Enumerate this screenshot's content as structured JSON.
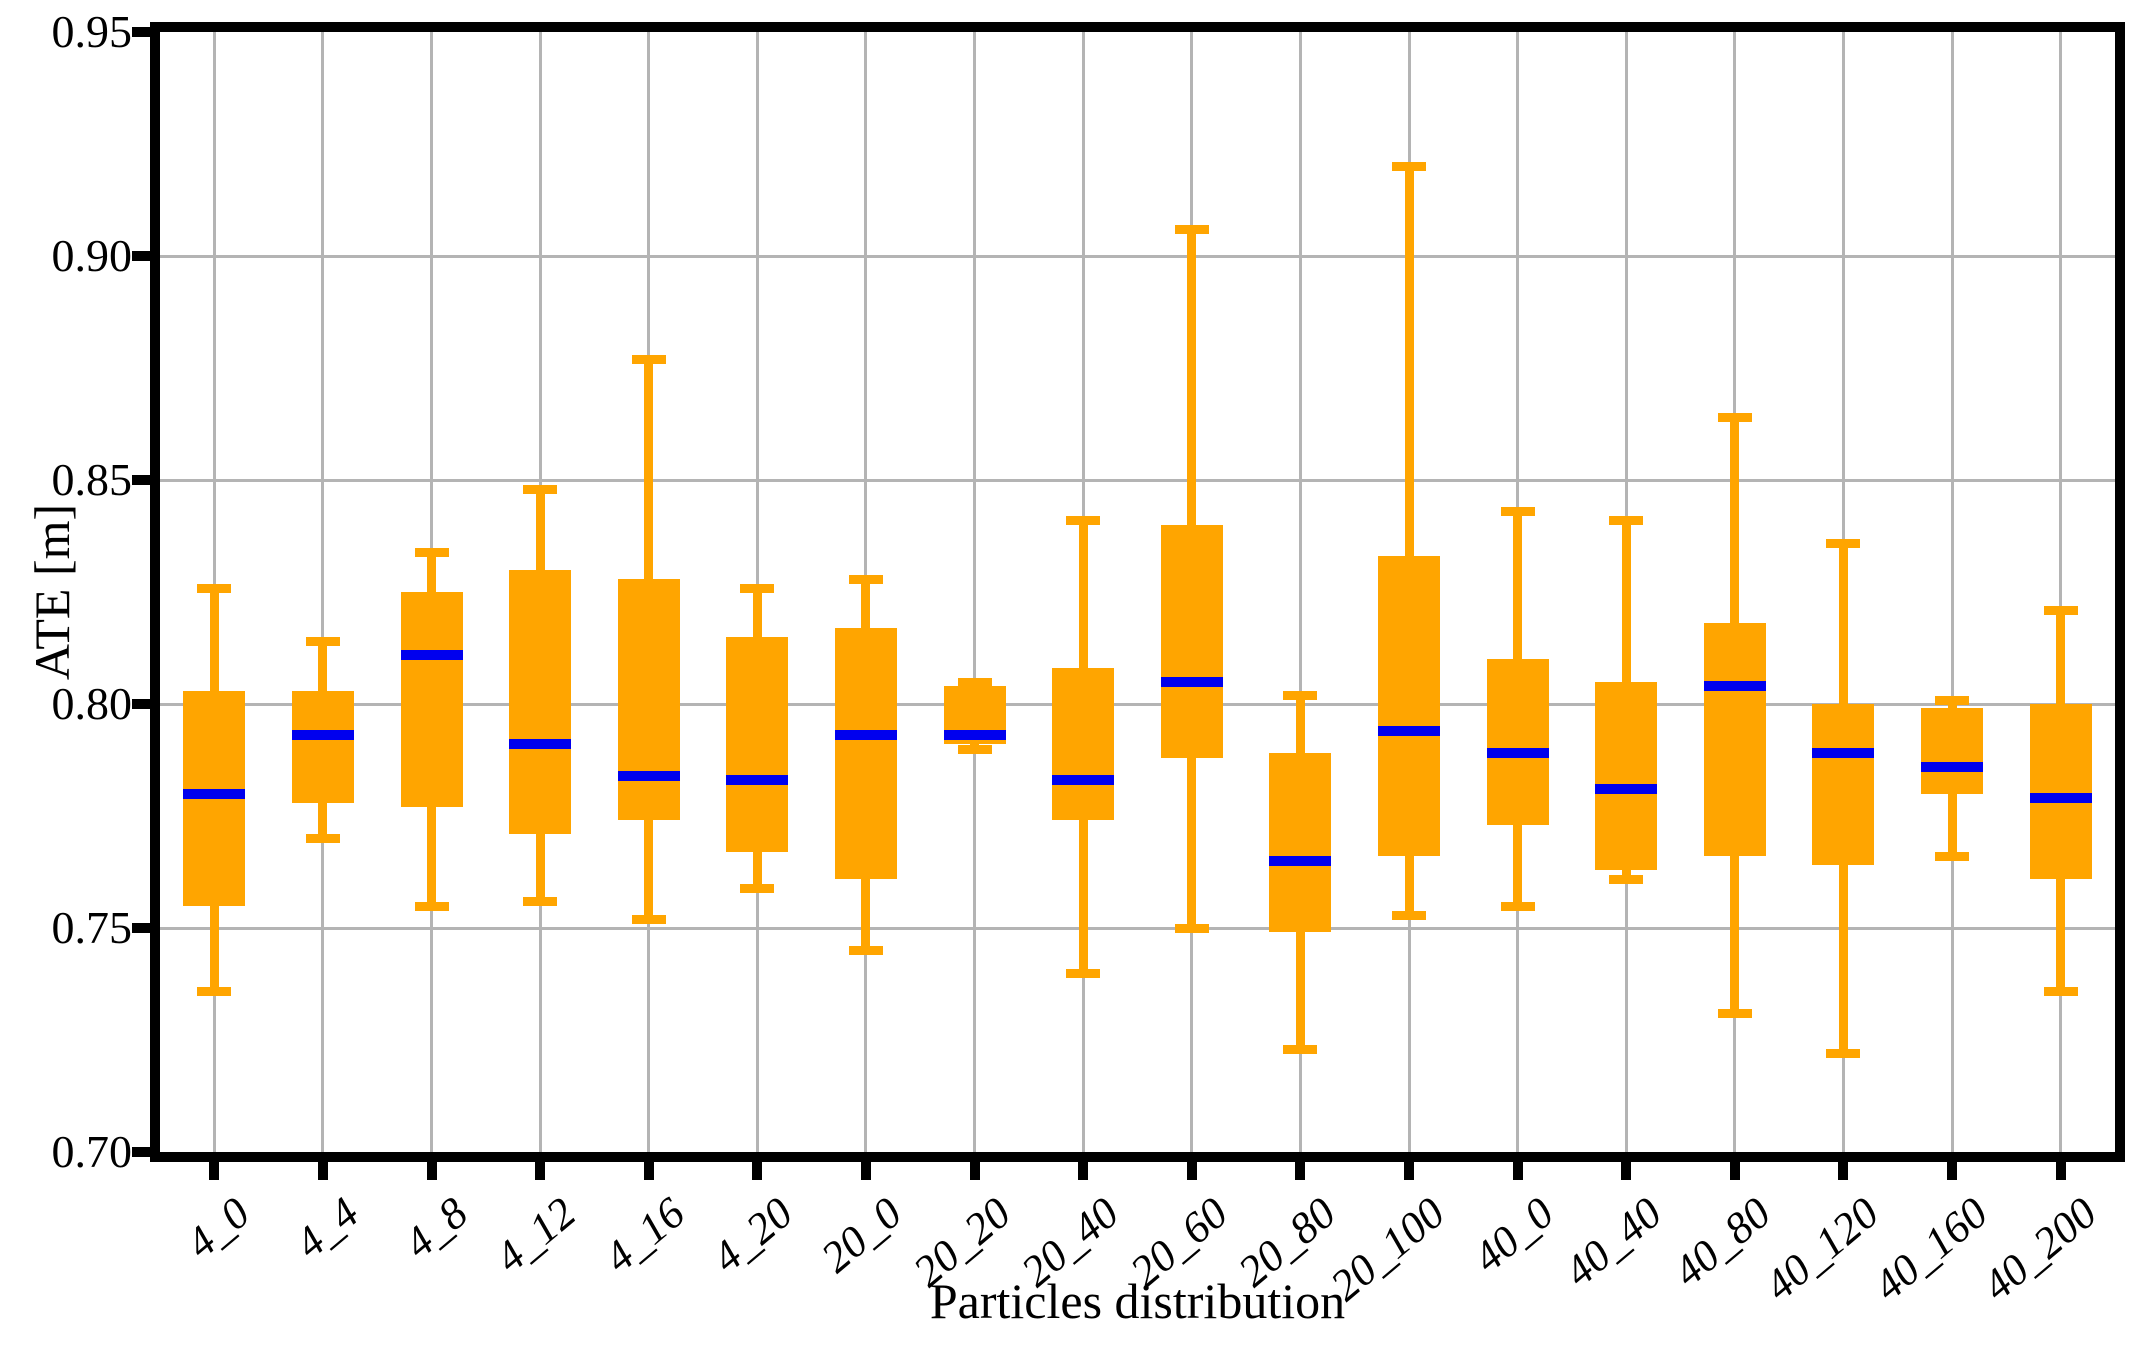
{
  "figure": {
    "xlabel": "Particles distribution",
    "ylabel": "ATE [m]"
  },
  "chart_data": {
    "type": "boxplot",
    "title": "",
    "xlabel": "Particles distribution",
    "ylabel": "ATE [m]",
    "ylim": [
      0.7,
      0.95
    ],
    "yticks": [
      0.7,
      0.75,
      0.8,
      0.85,
      0.9,
      0.95
    ],
    "ytick_labels": [
      "0.70",
      "0.75",
      "0.80",
      "0.85",
      "0.90",
      "0.95"
    ],
    "grid": true,
    "legend": "none",
    "categories": [
      "4_0",
      "4_4",
      "4_8",
      "4_12",
      "4_16",
      "4_20",
      "20_0",
      "20_20",
      "20_40",
      "20_60",
      "20_80",
      "20_100",
      "40_0",
      "40_40",
      "40_80",
      "40_120",
      "40_160",
      "40_200"
    ],
    "series": [
      {
        "name": "4_0",
        "whislo": 0.736,
        "q1": 0.755,
        "med": 0.78,
        "q3": 0.803,
        "whishi": 0.826
      },
      {
        "name": "4_4",
        "whislo": 0.77,
        "q1": 0.778,
        "med": 0.793,
        "q3": 0.803,
        "whishi": 0.814
      },
      {
        "name": "4_8",
        "whislo": 0.755,
        "q1": 0.777,
        "med": 0.811,
        "q3": 0.825,
        "whishi": 0.834
      },
      {
        "name": "4_12",
        "whislo": 0.756,
        "q1": 0.771,
        "med": 0.791,
        "q3": 0.83,
        "whishi": 0.848
      },
      {
        "name": "4_16",
        "whislo": 0.752,
        "q1": 0.774,
        "med": 0.784,
        "q3": 0.828,
        "whishi": 0.877
      },
      {
        "name": "4_20",
        "whislo": 0.759,
        "q1": 0.767,
        "med": 0.783,
        "q3": 0.815,
        "whishi": 0.826
      },
      {
        "name": "20_0",
        "whislo": 0.745,
        "q1": 0.761,
        "med": 0.793,
        "q3": 0.817,
        "whishi": 0.828
      },
      {
        "name": "20_20",
        "whislo": 0.79,
        "q1": 0.791,
        "med": 0.793,
        "q3": 0.804,
        "whishi": 0.805
      },
      {
        "name": "20_40",
        "whislo": 0.74,
        "q1": 0.774,
        "med": 0.783,
        "q3": 0.808,
        "whishi": 0.841
      },
      {
        "name": "20_60",
        "whislo": 0.75,
        "q1": 0.788,
        "med": 0.805,
        "q3": 0.84,
        "whishi": 0.906
      },
      {
        "name": "20_80",
        "whislo": 0.723,
        "q1": 0.749,
        "med": 0.765,
        "q3": 0.789,
        "whishi": 0.802
      },
      {
        "name": "20_100",
        "whislo": 0.753,
        "q1": 0.766,
        "med": 0.794,
        "q3": 0.833,
        "whishi": 0.92
      },
      {
        "name": "40_0",
        "whislo": 0.755,
        "q1": 0.773,
        "med": 0.789,
        "q3": 0.81,
        "whishi": 0.843
      },
      {
        "name": "40_40",
        "whislo": 0.761,
        "q1": 0.763,
        "med": 0.781,
        "q3": 0.805,
        "whishi": 0.841
      },
      {
        "name": "40_80",
        "whislo": 0.731,
        "q1": 0.766,
        "med": 0.804,
        "q3": 0.818,
        "whishi": 0.864
      },
      {
        "name": "40_120",
        "whislo": 0.722,
        "q1": 0.764,
        "med": 0.789,
        "q3": 0.8,
        "whishi": 0.836
      },
      {
        "name": "40_160",
        "whislo": 0.766,
        "q1": 0.78,
        "med": 0.786,
        "q3": 0.799,
        "whishi": 0.801
      },
      {
        "name": "40_200",
        "whislo": 0.736,
        "q1": 0.761,
        "med": 0.779,
        "q3": 0.8,
        "whishi": 0.821
      }
    ],
    "colors": {
      "box_fill": "#FFA500",
      "whisker": "#FFA500",
      "median": "#0000EE",
      "grid": "#B4B4B4",
      "axis": "#000000",
      "background": "#FFFFFF",
      "text": "#000000"
    }
  }
}
